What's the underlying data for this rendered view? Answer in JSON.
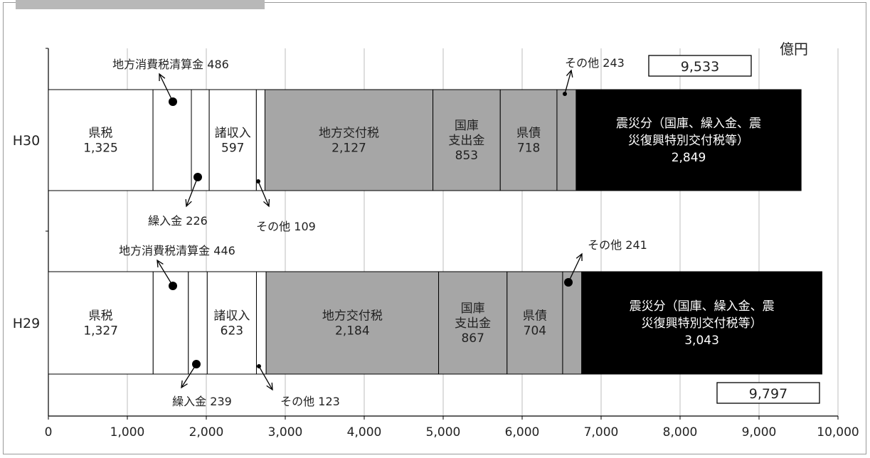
{
  "chart_data": {
    "type": "bar",
    "orientation": "horizontal-stacked",
    "unit": "億円",
    "categories": [
      "H30",
      "H29"
    ],
    "x_ticks": [
      "0",
      "1,000",
      "2,000",
      "3,000",
      "4,000",
      "5,000",
      "6,000",
      "7,000",
      "8,000",
      "9,000",
      "10,000"
    ],
    "xlim": [
      0,
      10000
    ],
    "grid": true,
    "totals": {
      "H30": "9,533",
      "H29": "9,797"
    },
    "segment_colors": {
      "white": "#ffffff",
      "gray": "#a6a6a6",
      "black": "#000000"
    },
    "series": [
      {
        "key": "kenzei",
        "color": "white",
        "values": [
          1325,
          1327
        ],
        "labels": [
          [
            "県税",
            "1,325"
          ],
          [
            "県税",
            "1,327"
          ]
        ]
      },
      {
        "key": "chihoshohizei",
        "color": "white",
        "values": [
          486,
          446
        ],
        "labels": [
          "地方消費税清算金 486",
          "地方消費税清算金 446"
        ]
      },
      {
        "key": "kurireikin",
        "color": "white",
        "values": [
          226,
          239
        ],
        "labels": [
          "繰入金 226",
          "繰入金 239"
        ]
      },
      {
        "key": "shoshunyu",
        "color": "white",
        "values": [
          597,
          623
        ],
        "labels": [
          [
            "諸収入",
            "597"
          ],
          [
            "諸収入",
            "623"
          ]
        ]
      },
      {
        "key": "sonota1",
        "color": "white",
        "values": [
          109,
          123
        ],
        "labels": [
          "その他 109",
          "その他 123"
        ]
      },
      {
        "key": "chihokofuzei",
        "color": "gray",
        "values": [
          2127,
          2184
        ],
        "labels": [
          [
            "地方交付税",
            "2,127"
          ],
          [
            "地方交付税",
            "2,184"
          ]
        ]
      },
      {
        "key": "kokko",
        "color": "gray",
        "values": [
          853,
          867
        ],
        "labels": [
          [
            "国庫",
            "支出金",
            "853"
          ],
          [
            "国庫",
            "支出金",
            "867"
          ]
        ]
      },
      {
        "key": "kensai",
        "color": "gray",
        "values": [
          718,
          704
        ],
        "labels": [
          [
            "県債",
            "718"
          ],
          [
            "県債",
            "704"
          ]
        ]
      },
      {
        "key": "sonota2",
        "color": "gray",
        "values": [
          243,
          241
        ],
        "labels": [
          "その他 243",
          "その他 241"
        ]
      },
      {
        "key": "shinsai",
        "color": "black",
        "values": [
          2849,
          3043
        ],
        "labels": [
          [
            "震災分（国庫、繰入金、震",
            "災復興特別交付税等）",
            "2,849"
          ],
          [
            "震災分（国庫、繰入金、震",
            "災復興特別交付税等）",
            "3,043"
          ]
        ]
      }
    ]
  }
}
